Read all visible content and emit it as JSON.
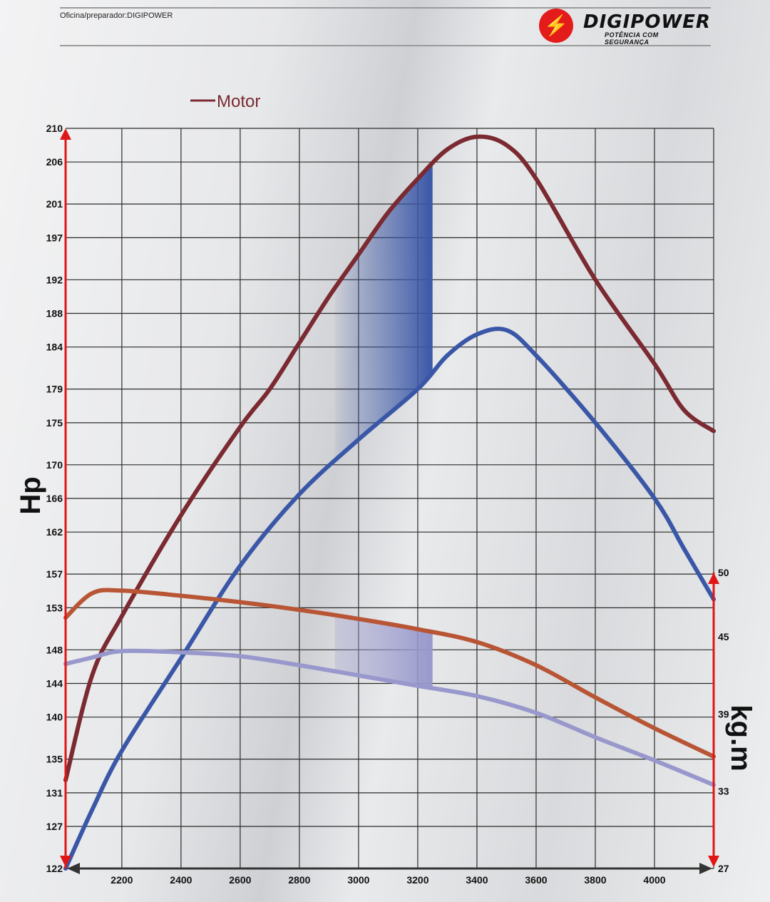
{
  "header": {
    "workshop_label": "Oficina/preparador:DIGIPOWER",
    "logo": {
      "name": "DIGIPOWER",
      "tagline": "POTÊNCIA COM SEGURANÇA",
      "icon": "lightning-bolt-icon",
      "color": "#e31b1b"
    }
  },
  "chart_data": {
    "type": "line",
    "title": "",
    "legend": [
      {
        "label": "Motor",
        "color": "#7a2a30"
      }
    ],
    "legend_position": "top-left",
    "grid": true,
    "x": {
      "ticks": [
        2200,
        2400,
        2600,
        2800,
        3000,
        3200,
        3400,
        3600,
        3800,
        4000
      ],
      "range": [
        2010,
        4200
      ],
      "label": ""
    },
    "y_left": {
      "label": "Hp",
      "ticks": [
        122,
        127,
        131,
        135,
        140,
        144,
        148,
        153,
        157,
        162,
        166,
        170,
        175,
        179,
        184,
        188,
        192,
        197,
        201,
        206,
        210
      ],
      "range": [
        122,
        210
      ]
    },
    "y_right": {
      "label": "kg.m",
      "ticks": [
        27,
        33,
        39,
        45,
        50
      ],
      "range": [
        27,
        50
      ]
    },
    "series": [
      {
        "name": "Motor",
        "axis": "left",
        "color": "#7a2a30",
        "metric": "power",
        "points": [
          [
            2010,
            132.5
          ],
          [
            2100,
            145
          ],
          [
            2200,
            152
          ],
          [
            2400,
            164
          ],
          [
            2600,
            174.5
          ],
          [
            2700,
            179
          ],
          [
            2800,
            184.5
          ],
          [
            2900,
            190
          ],
          [
            3000,
            195
          ],
          [
            3100,
            200
          ],
          [
            3200,
            204
          ],
          [
            3300,
            207.5
          ],
          [
            3400,
            209
          ],
          [
            3500,
            208
          ],
          [
            3600,
            204
          ],
          [
            3800,
            192
          ],
          [
            4000,
            182
          ],
          [
            4100,
            176.5
          ],
          [
            4200,
            174
          ]
        ]
      },
      {
        "series_role": "power-modified",
        "axis": "left",
        "color": "#3a57a7",
        "metric": "power",
        "points": [
          [
            2010,
            122
          ],
          [
            2100,
            129
          ],
          [
            2200,
            136
          ],
          [
            2400,
            147
          ],
          [
            2600,
            158
          ],
          [
            2800,
            166.5
          ],
          [
            3000,
            173
          ],
          [
            3200,
            179
          ],
          [
            3300,
            183
          ],
          [
            3400,
            185.5
          ],
          [
            3500,
            186
          ],
          [
            3600,
            183
          ],
          [
            3800,
            175
          ],
          [
            4000,
            166
          ],
          [
            4100,
            160
          ],
          [
            4200,
            154
          ]
        ]
      },
      {
        "series_role": "torque-original",
        "axis": "right",
        "color": "#b85535",
        "metric": "torque",
        "points": [
          [
            2010,
            46.5
          ],
          [
            2100,
            48.4
          ],
          [
            2200,
            48.6
          ],
          [
            2400,
            48.2
          ],
          [
            2600,
            47.7
          ],
          [
            2800,
            47.1
          ],
          [
            3000,
            46.4
          ],
          [
            3200,
            45.6
          ],
          [
            3400,
            44.6
          ],
          [
            3600,
            42.8
          ],
          [
            3800,
            40.3
          ],
          [
            4000,
            37.9
          ],
          [
            4200,
            35.7
          ]
        ]
      },
      {
        "series_role": "torque-modified",
        "axis": "right",
        "color": "#9898cc",
        "metric": "torque",
        "points": [
          [
            2010,
            42.9
          ],
          [
            2100,
            43.4
          ],
          [
            2200,
            43.9
          ],
          [
            2400,
            43.8
          ],
          [
            2600,
            43.5
          ],
          [
            2800,
            42.8
          ],
          [
            3000,
            42.0
          ],
          [
            3200,
            41.2
          ],
          [
            3400,
            40.4
          ],
          [
            3600,
            39.1
          ],
          [
            3800,
            37.2
          ],
          [
            4000,
            35.4
          ],
          [
            4200,
            33.5
          ]
        ]
      }
    ],
    "highlight_rpm_range": [
      2920,
      3250
    ]
  }
}
